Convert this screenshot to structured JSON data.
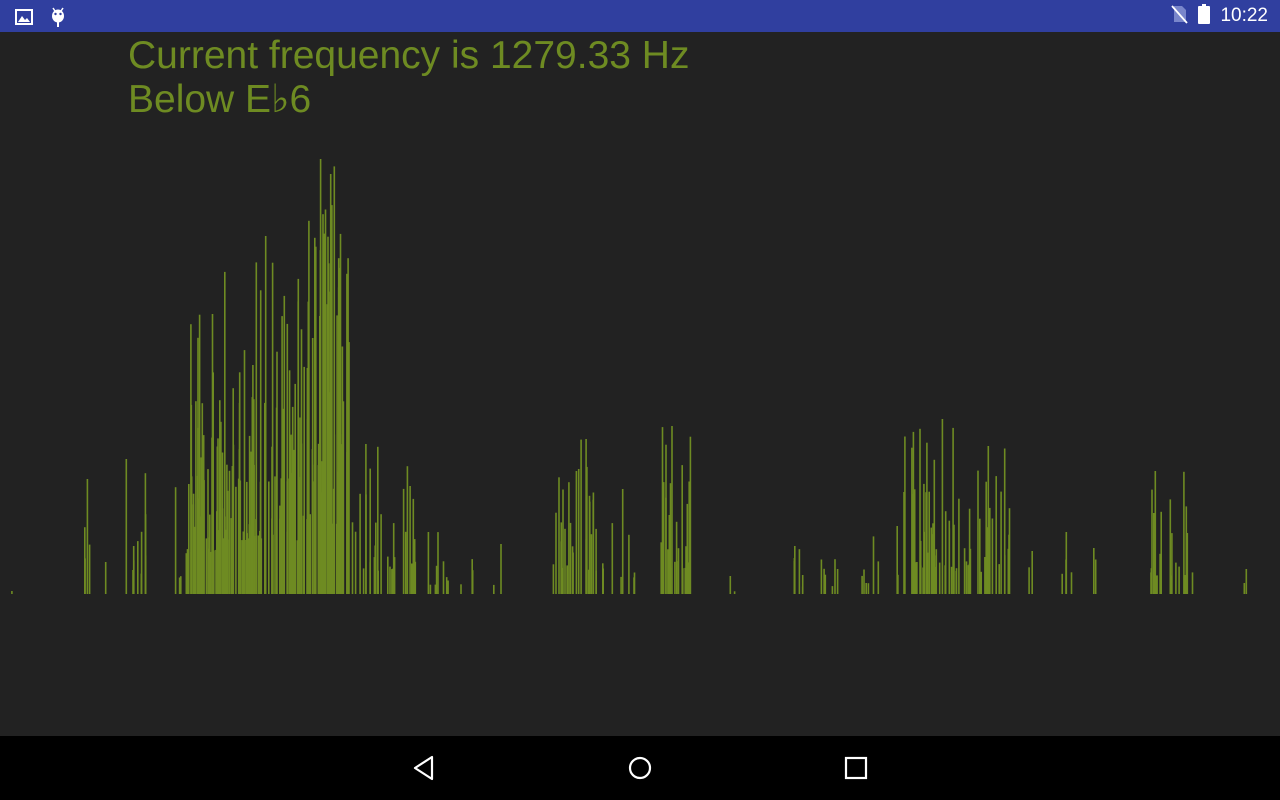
{
  "status_bar": {
    "left_icons": [
      "image-notification-icon",
      "android-debug-icon"
    ],
    "right_icons": [
      "no-sim-icon",
      "battery-icon"
    ],
    "time": "10:22",
    "background": "#303F9F"
  },
  "tuner": {
    "frequency_text": "Current frequency is 1279.33 Hz",
    "note_text": "Below E♭6",
    "text_color": "#6E8B22",
    "background": "#222222"
  },
  "nav_bar": {
    "buttons": [
      "back",
      "home",
      "recents"
    ],
    "background": "#000000"
  },
  "spectrum": {
    "bar_color": "#6E8B22",
    "clusters": [
      {
        "x": 10,
        "w": 2,
        "n": 1,
        "max": 3,
        "seed": 1
      },
      {
        "x": 82,
        "w": 12,
        "n": 4,
        "max": 115,
        "seed": 2
      },
      {
        "x": 104,
        "w": 4,
        "n": 1,
        "max": 32,
        "seed": 3
      },
      {
        "x": 124,
        "w": 28,
        "n": 10,
        "max": 135,
        "seed": 4
      },
      {
        "x": 172,
        "w": 18,
        "n": 6,
        "max": 110,
        "seed": 5
      },
      {
        "x": 190,
        "w": 30,
        "n": 40,
        "max": 280,
        "seed": 6
      },
      {
        "x": 220,
        "w": 80,
        "n": 90,
        "max": 358,
        "seed": 7
      },
      {
        "x": 300,
        "w": 50,
        "n": 70,
        "max": 435,
        "seed": 8
      },
      {
        "x": 350,
        "w": 65,
        "n": 30,
        "max": 150,
        "seed": 9
      },
      {
        "x": 426,
        "w": 24,
        "n": 8,
        "max": 62,
        "seed": 10
      },
      {
        "x": 455,
        "w": 50,
        "n": 5,
        "max": 50,
        "seed": 11
      },
      {
        "x": 552,
        "w": 45,
        "n": 28,
        "max": 155,
        "seed": 12
      },
      {
        "x": 600,
        "w": 38,
        "n": 8,
        "max": 105,
        "seed": 13
      },
      {
        "x": 658,
        "w": 32,
        "n": 22,
        "max": 168,
        "seed": 14
      },
      {
        "x": 728,
        "w": 6,
        "n": 2,
        "max": 18,
        "seed": 15
      },
      {
        "x": 790,
        "w": 48,
        "n": 12,
        "max": 48,
        "seed": 16
      },
      {
        "x": 855,
        "w": 45,
        "n": 8,
        "max": 68,
        "seed": 17
      },
      {
        "x": 900,
        "w": 55,
        "n": 36,
        "max": 175,
        "seed": 18
      },
      {
        "x": 955,
        "w": 55,
        "n": 28,
        "max": 148,
        "seed": 19
      },
      {
        "x": 1028,
        "w": 8,
        "n": 2,
        "max": 43,
        "seed": 20
      },
      {
        "x": 1055,
        "w": 40,
        "n": 6,
        "max": 62,
        "seed": 21
      },
      {
        "x": 1150,
        "w": 45,
        "n": 20,
        "max": 123,
        "seed": 22
      },
      {
        "x": 1238,
        "w": 8,
        "n": 2,
        "max": 25,
        "seed": 23
      }
    ]
  }
}
